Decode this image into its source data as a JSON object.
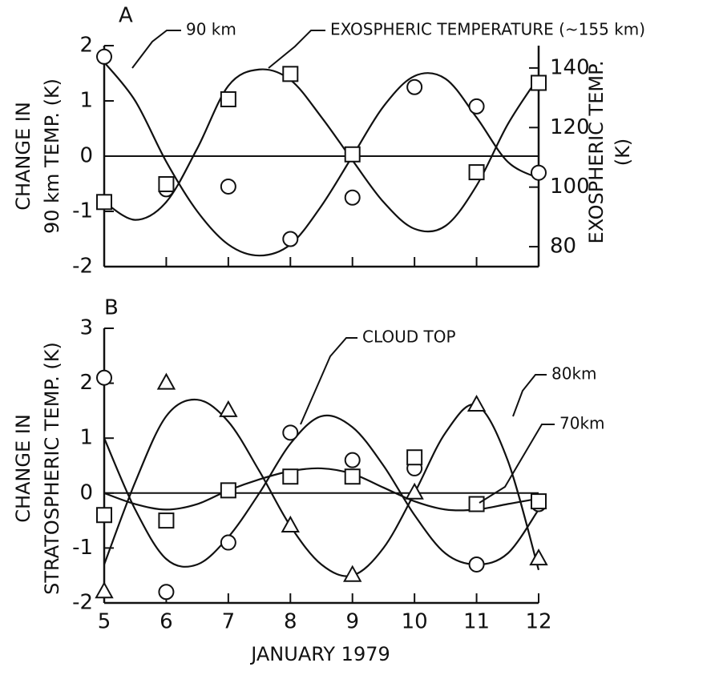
{
  "chart_data": [
    {
      "type": "scatter-fit",
      "panel_label": "A",
      "xlim": [
        5,
        12
      ],
      "xticks": [
        5,
        6,
        7,
        8,
        9,
        10,
        11,
        12
      ],
      "xtick_labels": false,
      "ylim": [
        -2,
        2
      ],
      "yticks": [
        -2,
        -1,
        0,
        1,
        2
      ],
      "y2lim": [
        73.3,
        147.5
      ],
      "y2ticks": [
        80,
        100,
        120,
        140
      ],
      "ylabel": [
        "CHANGE IN",
        "90 km TEMP.  (K)"
      ],
      "y2label": [
        "EXOSPHERIC TEMP.",
        "(K)"
      ],
      "hline": 0,
      "series": [
        {
          "name": "90 km",
          "marker": "circle",
          "color": "#111111",
          "x": [
            5,
            6,
            7,
            8,
            9,
            10,
            11,
            12
          ],
          "values": [
            1.8,
            -0.6,
            -0.55,
            -1.5,
            -0.75,
            1.25,
            0.9,
            -0.3
          ],
          "curve_x": [
            5,
            5.5,
            6,
            6.5,
            7,
            7.5,
            8,
            8.5,
            9,
            9.5,
            10,
            10.5,
            11,
            11.5,
            12
          ],
          "curve_values": [
            1.7,
            1.0,
            -0.1,
            -1.0,
            -1.6,
            -1.8,
            -1.6,
            -0.9,
            0.0,
            0.9,
            1.45,
            1.4,
            0.7,
            -0.1,
            -0.4
          ]
        },
        {
          "name": "EXOSPHERIC TEMPERATURE (~155 km)",
          "marker": "square",
          "color": "#111111",
          "axis": "y2",
          "x": [
            5,
            6,
            7,
            8,
            9,
            11,
            12
          ],
          "values": [
            95,
            101,
            129.5,
            138,
            111,
            105,
            135
          ],
          "curve_x": [
            5,
            5.5,
            6,
            6.5,
            7,
            7.5,
            8,
            8.5,
            9,
            9.5,
            10,
            10.5,
            11,
            11.5,
            12
          ],
          "curve_values": [
            95,
            89,
            95,
            113,
            134,
            139.5,
            136,
            123.5,
            109,
            95,
            86,
            87,
            100.5,
            121,
            137
          ]
        }
      ]
    },
    {
      "type": "scatter-fit",
      "panel_label": "B",
      "xlim": [
        5,
        12
      ],
      "xticks": [
        5,
        6,
        7,
        8,
        9,
        10,
        11,
        12
      ],
      "xtick_labels": true,
      "ylim": [
        -2,
        3
      ],
      "yticks": [
        -2,
        -1,
        0,
        1,
        2,
        3
      ],
      "ylabel": [
        "CHANGE IN",
        "STRATOSPHERIC TEMP. (K)"
      ],
      "xlabel": "JANUARY 1979",
      "hline": 0,
      "series": [
        {
          "name": "CLOUD TOP",
          "marker": "circle",
          "color": "#111111",
          "x": [
            5,
            6,
            7,
            8,
            9,
            10,
            11,
            12
          ],
          "values": [
            2.1,
            -1.8,
            -0.9,
            1.1,
            0.6,
            0.45,
            -1.3,
            -0.2
          ],
          "curve_x": [
            5,
            5.5,
            6,
            6.5,
            7,
            7.5,
            8,
            8.5,
            9,
            9.5,
            10,
            10.5,
            11,
            11.5,
            12
          ],
          "curve_values": [
            1.0,
            -0.3,
            -1.2,
            -1.3,
            -0.8,
            0.0,
            0.9,
            1.4,
            1.2,
            0.5,
            -0.4,
            -1.1,
            -1.3,
            -1.1,
            -0.3
          ]
        },
        {
          "name": "80km",
          "marker": "triangle",
          "color": "#111111",
          "x": [
            5,
            6,
            7,
            8,
            9,
            10,
            11,
            12
          ],
          "values": [
            -1.8,
            2.0,
            1.5,
            -0.6,
            -1.5,
            0.0,
            1.6,
            -1.2
          ],
          "curve_x": [
            5,
            5.5,
            6,
            6.5,
            7,
            7.5,
            8,
            8.5,
            9,
            9.5,
            10,
            10.5,
            11,
            11.5,
            12
          ],
          "curve_values": [
            -1.3,
            0.2,
            1.4,
            1.7,
            1.3,
            0.4,
            -0.6,
            -1.3,
            -1.5,
            -1.0,
            0.0,
            1.1,
            1.6,
            0.6,
            -1.4
          ]
        },
        {
          "name": "70km",
          "marker": "square",
          "color": "#111111",
          "x": [
            5,
            6,
            7,
            8,
            9,
            10,
            11,
            12
          ],
          "values": [
            -0.4,
            -0.5,
            0.05,
            0.3,
            0.3,
            0.65,
            -0.2,
            -0.15
          ],
          "curve_x": [
            5,
            5.5,
            6,
            6.5,
            7,
            7.5,
            8,
            8.5,
            9,
            9.5,
            10,
            10.5,
            11,
            11.5,
            12
          ],
          "curve_values": [
            0.0,
            -0.2,
            -0.3,
            -0.2,
            0.05,
            0.25,
            0.4,
            0.45,
            0.35,
            0.1,
            -0.15,
            -0.3,
            -0.3,
            -0.2,
            -0.1
          ]
        }
      ]
    }
  ]
}
